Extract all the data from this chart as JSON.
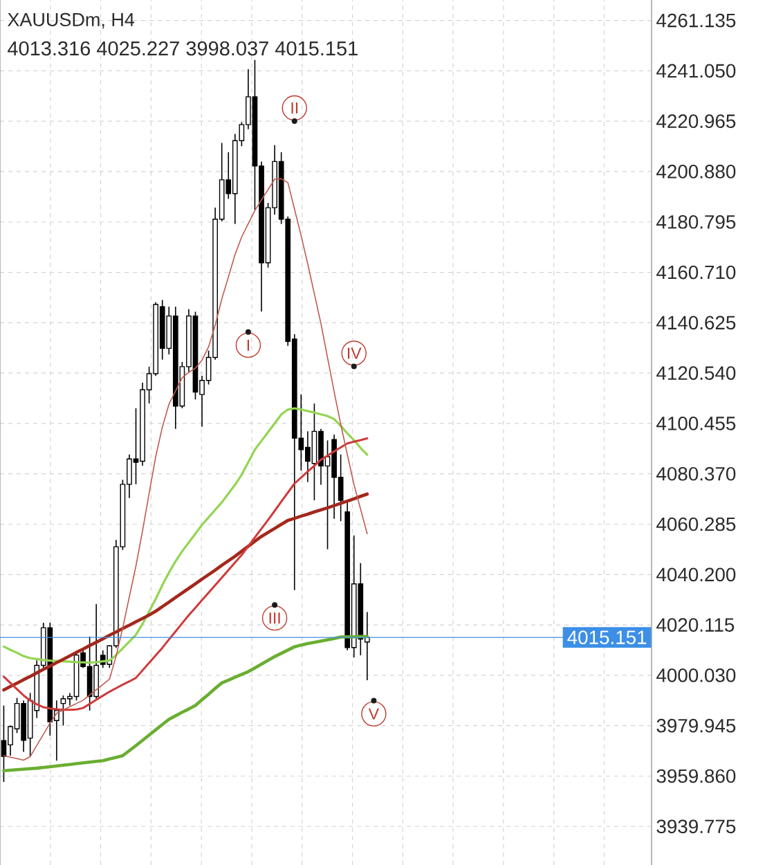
{
  "chart_data": {
    "type": "candlestick",
    "title": "XAUUSDm, H4",
    "subtitle": "4013.316 4025.227 3998.037 4015.151",
    "categories": [
      null,
      null,
      null,
      null,
      null,
      null,
      null,
      null,
      null,
      null,
      null,
      null,
      null,
      null,
      null,
      null,
      null,
      null,
      null,
      null,
      null,
      null,
      null,
      null,
      null,
      null,
      null,
      null,
      null,
      null,
      null,
      null,
      null,
      null,
      null,
      null,
      null,
      null,
      null,
      null,
      null,
      null,
      null,
      null,
      null,
      null,
      null,
      null,
      null,
      null,
      null,
      null,
      null,
      null,
      null,
      null,
      null
    ],
    "ohlc": [
      [
        3974,
        3988,
        3957.5,
        3967.7
      ],
      [
        3972.3,
        3980,
        3968,
        3979.6
      ],
      [
        3978.7,
        3991,
        3977,
        3988.8
      ],
      [
        3988.8,
        3990,
        3969.5,
        3974.1
      ],
      [
        3975,
        3993,
        3967.7,
        3990
      ],
      [
        3986,
        4006,
        3983,
        4004
      ],
      [
        4004,
        4021,
        4002,
        4019
      ],
      [
        4019,
        4021,
        3976,
        3981.5
      ],
      [
        3982,
        3990,
        3966,
        3986
      ],
      [
        3988.8,
        3992,
        3980,
        3990.7
      ],
      [
        3990.7,
        3993,
        3988,
        3991.6
      ],
      [
        3991.6,
        4009,
        3990,
        4008.1
      ],
      [
        4009,
        4011,
        4003,
        4003.5
      ],
      [
        4003.5,
        4015.5,
        3986,
        3991.6
      ],
      [
        3991.6,
        4028.4,
        3990.7,
        4004
      ],
      [
        4008,
        4010,
        4003,
        4004.4
      ],
      [
        4004.4,
        4012,
        4003,
        4011.8
      ],
      [
        4011.8,
        4054,
        4011,
        4051.3
      ],
      [
        4051.3,
        4078,
        4050,
        4076.2
      ],
      [
        4076.2,
        4088.1,
        4070.7,
        4086.3
      ],
      [
        4086.3,
        4106.5,
        4076.2,
        4085
      ],
      [
        4085.4,
        4116.7,
        4083.6,
        4113.9
      ],
      [
        4113.9,
        4123.1,
        4108.4,
        4120.3
      ],
      [
        4120.3,
        4148.8,
        4119.4,
        4147.9
      ],
      [
        4147,
        4149.7,
        4125.9,
        4130.4
      ],
      [
        4130.4,
        4147,
        4128,
        4143.3
      ],
      [
        4143.3,
        4147,
        4098.3,
        4107.4
      ],
      [
        4107.4,
        4125,
        4106.5,
        4123.1
      ],
      [
        4123.1,
        4146,
        4121,
        4143.3
      ],
      [
        4143.3,
        4145,
        4110,
        4113
      ],
      [
        4112,
        4119.5,
        4099.1,
        4117.6
      ],
      [
        4117.6,
        4129.5,
        4116,
        4126.8
      ],
      [
        4126.8,
        4186.5,
        4125.9,
        4181.9
      ],
      [
        4181.9,
        4212.3,
        4181,
        4197.6
      ],
      [
        4197.6,
        4208.6,
        4190,
        4192.1
      ],
      [
        4192.1,
        4215.9,
        4180,
        4213.2
      ],
      [
        4213.2,
        4220.6,
        4211,
        4219.6
      ],
      [
        4219.6,
        4241.7,
        4217.8,
        4230.7
      ],
      [
        4230.7,
        4245.4,
        4185.6,
        4203.1
      ],
      [
        4203.1,
        4204.9,
        4145.1,
        4164.5
      ],
      [
        4164.5,
        4188.4,
        4162.6,
        4186.5
      ],
      [
        4186.5,
        4211.4,
        4183.7,
        4204.9
      ],
      [
        4204.9,
        4208.6,
        4180,
        4181.9
      ],
      [
        4181.9,
        4183,
        4131.4,
        4133.2
      ],
      [
        4134.1,
        4136,
        4034,
        4094.6
      ],
      [
        4094.6,
        4112.1,
        4081.7,
        4090
      ],
      [
        4090.9,
        4097.3,
        4077.1,
        4085.4
      ],
      [
        4084.5,
        4108.4,
        4069.8,
        4097.3
      ],
      [
        4097.3,
        4098.3,
        4076,
        4083.5
      ],
      [
        4083.5,
        4093.7,
        4050.3,
        4087.2
      ],
      [
        4094,
        4096,
        4062.4,
        4079
      ],
      [
        4079,
        4088.1,
        4061.5,
        4069.8
      ],
      [
        4065.2,
        4068.9,
        4010,
        4011.1
      ],
      [
        4011.1,
        4055.8,
        4007.1,
        4036.5
      ],
      [
        4036.5,
        4044.8,
        4008,
        4014.5
      ],
      [
        4013.316,
        4025.227,
        3998.037,
        4015.151
      ],
      null
    ],
    "series": [
      {
        "type": "line",
        "color": "#6aae31",
        "values": [
          3962,
          3962.2,
          3962.4,
          3962.6,
          3962.8,
          3963,
          3963.3,
          3963.6,
          3963.9,
          3964.2,
          3964.5,
          3964.8,
          3965.1,
          3965.4,
          3965.7,
          3966,
          3966.7,
          3967.3,
          3968,
          3970,
          3972,
          3974.1,
          3976.2,
          3978.3,
          3980.4,
          3982.5,
          3983.9,
          3985.3,
          3986.6,
          3988,
          3990.3,
          3992.5,
          3994.8,
          3997,
          3998.1,
          3999.3,
          4000.4,
          4001.5,
          4003,
          4004.5,
          4006,
          4007.5,
          4008.8,
          4010.1,
          4011.4,
          4012.1,
          4012.7,
          4013.2,
          4013.7,
          4014.2,
          4014.7,
          4015.3,
          4015.4,
          4015.4,
          4015.5,
          4015.5,
          null
        ]
      },
      {
        "type": "line",
        "color": "#93d552",
        "values": [
          4011.5,
          4010.2,
          4009,
          4007.7,
          4006.9,
          4006.5,
          4006.1,
          4005.9,
          4005.8,
          4005.6,
          4005.5,
          4005.3,
          4005.2,
          4005.1,
          4005.3,
          4005.6,
          4005.9,
          4008.1,
          4010.8,
          4013.5,
          4016.2,
          4020.5,
          4025.5,
          4030.5,
          4036,
          4041,
          4045.5,
          4049.5,
          4053,
          4056.5,
          4060,
          4063,
          4066,
          4069,
          4072.5,
          4076,
          4080,
          4085,
          4090,
          4093.5,
          4097,
          4100.5,
          4104,
          4106,
          4106.5,
          4106,
          4105.4,
          4104.8,
          4104.1,
          4103.4,
          4102.2,
          4099.5,
          4096.5,
          4093.8,
          4090.7,
          4088,
          null
        ]
      },
      {
        "type": "line",
        "color": "#a3281c",
        "values": [
          3994.2,
          3995.6,
          3996.9,
          3998.3,
          3999.6,
          4001,
          4002.4,
          4003.7,
          4005.1,
          4006.4,
          4007.8,
          4009.2,
          4010.5,
          4011.9,
          4013.2,
          4014.6,
          4016,
          4017.3,
          4018.7,
          4020,
          4021.4,
          4022.7,
          4024.1,
          4025.6,
          4027.4,
          4029.2,
          4031.1,
          4032.9,
          4034.7,
          4036.5,
          4038.4,
          4040.2,
          4042,
          4043.9,
          4045.7,
          4047.5,
          4049.5,
          4051.5,
          4053.5,
          4055.4,
          4057,
          4058.6,
          4060.2,
          4061.8,
          4062.6,
          4063.5,
          4064.3,
          4065.2,
          4066,
          4066.8,
          4067.7,
          4068.6,
          4069.5,
          4070.4,
          4071.4,
          4072.3,
          null
        ]
      },
      {
        "type": "line",
        "color": "#d0393a",
        "values": [
          3999.5,
          3997,
          3994.5,
          3992,
          3990,
          3988.5,
          3987.3,
          3986.8,
          3986.5,
          3986.3,
          3986.3,
          3986.4,
          3987,
          3988.6,
          3990.3,
          3991.9,
          3993.5,
          3994.9,
          3996.3,
          3997.6,
          3999,
          4002,
          4005,
          4008,
          4011,
          4014.3,
          4017.5,
          4020.8,
          4024,
          4027,
          4030,
          4033,
          4036,
          4039,
          4042,
          4045,
          4048,
          4051.5,
          4055,
          4058.5,
          4062,
          4065.6,
          4069.3,
          4072.9,
          4076.5,
          4078.9,
          4081.3,
          4083.6,
          4086,
          4087.6,
          4089.3,
          4090.9,
          4092.5,
          4093.2,
          4093.8,
          4094.5,
          null
        ]
      },
      {
        "type": "line",
        "color": "#c05a50",
        "values": [
          3968,
          3967.4,
          3966.8,
          3966.2,
          3967.6,
          3972.1,
          3976.5,
          3981,
          3984.9,
          3986.2,
          3987.5,
          3988.8,
          3990.1,
          3992.2,
          3994.3,
          3996.4,
          3998.5,
          4007.7,
          4018.9,
          4031.3,
          4043.6,
          4057.6,
          4072.6,
          4087.3,
          4099,
          4108.1,
          4113.4,
          4118.7,
          4120.8,
          4122.5,
          4125.7,
          4131,
          4139.7,
          4150.1,
          4158.9,
          4167.8,
          4174.8,
          4180.1,
          4185.4,
          4189.6,
          4193.7,
          4197.9,
          4198,
          4196.5,
          4185.9,
          4175.3,
          4164.1,
          4152.2,
          4140.3,
          4126.7,
          4113.1,
          4100.1,
          4088,
          4076.2,
          4066.3,
          4056.5,
          null
        ]
      },
      {
        "type": "scatter",
        "color": "#1a1a1a",
        "marker": "circle",
        "values": [
          null,
          null,
          null,
          null,
          null,
          null,
          null,
          null,
          null,
          null,
          null,
          null,
          null,
          null,
          null,
          null,
          null,
          null,
          null,
          null,
          null,
          null,
          null,
          null,
          null,
          null,
          null,
          null,
          null,
          null,
          null,
          null,
          null,
          null,
          null,
          null,
          null,
          4136.9,
          null,
          null,
          null,
          4028.1,
          null,
          null,
          4221.0,
          null,
          null,
          null,
          null,
          null,
          null,
          null,
          null,
          4123.2,
          null,
          null,
          3989.9
        ],
        "value_labels": [
          null,
          null,
          null,
          null,
          null,
          null,
          null,
          null,
          null,
          null,
          null,
          null,
          null,
          null,
          null,
          null,
          null,
          null,
          null,
          null,
          null,
          null,
          null,
          null,
          null,
          null,
          null,
          null,
          null,
          null,
          null,
          null,
          null,
          null,
          null,
          null,
          null,
          "I",
          null,
          null,
          null,
          "III",
          null,
          null,
          "II",
          null,
          null,
          null,
          null,
          null,
          null,
          null,
          null,
          "IV",
          null,
          null,
          "V"
        ]
      }
    ],
    "ylim": [
      3924.4,
      4269.3
    ],
    "yticks": [
      4261.135,
      {
        "value": 4241.05,
        "label": "4241.050"
      },
      4220.965,
      {
        "value": 4200.88,
        "label": "4200.880"
      },
      4180.795,
      {
        "value": 4160.71,
        "label": "4160.710"
      },
      4140.625,
      {
        "value": 4120.54,
        "label": "4120.540"
      },
      4100.455,
      {
        "value": 4080.37,
        "label": "4080.370"
      },
      4060.285,
      {
        "value": 4040.2,
        "label": "4040.200"
      },
      4020.115,
      {
        "value": 4000.03,
        "label": "4000.030"
      },
      3979.945,
      {
        "value": 3959.86,
        "label": "3959.860"
      },
      3939.775
    ],
    "grid": true,
    "ref_lines": [
      {
        "axis": "y",
        "value": 4015.151,
        "label": "4015.151",
        "color": "#3d8fe6"
      }
    ]
  }
}
